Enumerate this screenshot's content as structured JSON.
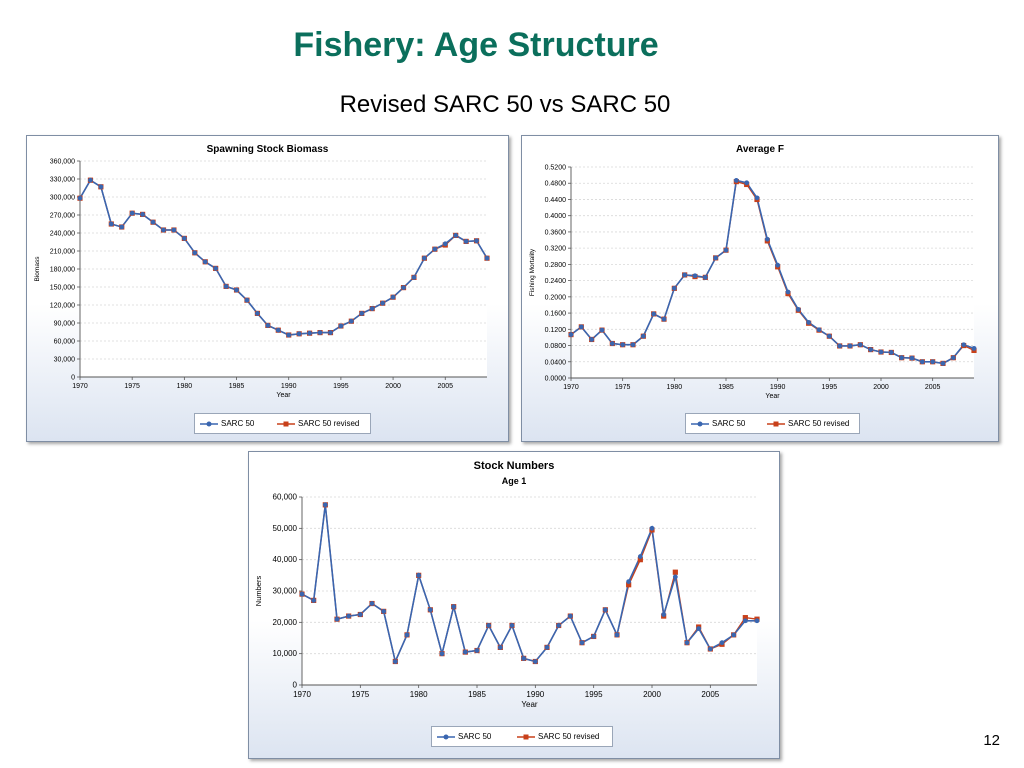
{
  "slide": {
    "title": "Fishery: Age Structure",
    "subtitle": "Revised SARC 50 vs SARC 50",
    "page_number": "12"
  },
  "colors": {
    "title": "#0b6f5c",
    "sarc50": "#3a66b0",
    "sarc50_revised": "#c8401a"
  },
  "chart_data": [
    {
      "id": "ssb",
      "type": "line",
      "title": "Spawning Stock Biomass",
      "subtitle": "",
      "xlabel": "Year",
      "ylabel": "Biomass",
      "xlim": [
        1970,
        2009
      ],
      "xticks": [
        1970,
        1975,
        1980,
        1985,
        1990,
        1995,
        2000,
        2005
      ],
      "ylim": [
        0,
        360000
      ],
      "yticks": [
        0,
        30000,
        60000,
        90000,
        120000,
        150000,
        180000,
        210000,
        240000,
        270000,
        300000,
        330000,
        360000
      ],
      "ytick_labels": [
        "0",
        "30,000",
        "60,000",
        "90,000",
        "120,000",
        "150,000",
        "180,000",
        "210,000",
        "240,000",
        "270,000",
        "300,000",
        "330,000",
        "360,000"
      ],
      "grid": true,
      "legend": "bottom",
      "x": [
        1970,
        1971,
        1972,
        1973,
        1974,
        1975,
        1976,
        1977,
        1978,
        1979,
        1980,
        1981,
        1982,
        1983,
        1984,
        1985,
        1986,
        1987,
        1988,
        1989,
        1990,
        1991,
        1992,
        1993,
        1994,
        1995,
        1996,
        1997,
        1998,
        1999,
        2000,
        2001,
        2002,
        2003,
        2004,
        2005,
        2006,
        2007,
        2008,
        2009
      ],
      "series": [
        {
          "name": "SARC 50",
          "marker": "circle",
          "color": "#3a66b0",
          "values": [
            298000,
            328000,
            317000,
            255000,
            250000,
            273000,
            271000,
            258000,
            245000,
            245000,
            231000,
            207000,
            192000,
            181000,
            151000,
            145000,
            128000,
            106000,
            86000,
            78000,
            70000,
            72000,
            73000,
            74000,
            74000,
            85000,
            93000,
            106000,
            114000,
            123000,
            133000,
            149000,
            166000,
            198000,
            213000,
            222000,
            236000,
            226000,
            227000,
            198000
          ]
        },
        {
          "name": "SARC 50 revised",
          "marker": "square",
          "color": "#c8401a",
          "values": [
            298000,
            328000,
            317000,
            255000,
            250000,
            273000,
            271000,
            258000,
            245000,
            245000,
            231000,
            207000,
            192000,
            181000,
            151000,
            145000,
            128000,
            106000,
            86000,
            78000,
            70000,
            72000,
            73000,
            74000,
            74000,
            85000,
            93000,
            106000,
            114000,
            123000,
            133000,
            149000,
            166000,
            198000,
            213000,
            220000,
            236000,
            226000,
            227000,
            198000
          ]
        }
      ]
    },
    {
      "id": "f",
      "type": "line",
      "title": "Average F",
      "subtitle": "",
      "xlabel": "Year",
      "ylabel": "Fishing Mortality",
      "xlim": [
        1970,
        2009
      ],
      "xticks": [
        1970,
        1975,
        1980,
        1985,
        1990,
        1995,
        2000,
        2005
      ],
      "ylim": [
        0,
        0.52
      ],
      "yticks": [
        0,
        0.04,
        0.08,
        0.12,
        0.16,
        0.2,
        0.24,
        0.28,
        0.32,
        0.36,
        0.4,
        0.44,
        0.48,
        0.52
      ],
      "ytick_labels": [
        "0.0000",
        "0.0400",
        "0.0800",
        "0.1200",
        "0.1600",
        "0.2000",
        "0.2400",
        "0.2800",
        "0.3200",
        "0.3600",
        "0.4000",
        "0.4400",
        "0.4800",
        "0.5200"
      ],
      "grid": true,
      "legend": "bottom",
      "x": [
        1970,
        1971,
        1972,
        1973,
        1974,
        1975,
        1976,
        1977,
        1978,
        1979,
        1980,
        1981,
        1982,
        1983,
        1984,
        1985,
        1986,
        1987,
        1988,
        1989,
        1990,
        1991,
        1992,
        1993,
        1994,
        1995,
        1996,
        1997,
        1998,
        1999,
        2000,
        2001,
        2002,
        2003,
        2004,
        2005,
        2006,
        2007,
        2008,
        2009
      ],
      "series": [
        {
          "name": "SARC 50",
          "marker": "circle",
          "color": "#3a66b0",
          "values": [
            0.107,
            0.126,
            0.095,
            0.118,
            0.085,
            0.082,
            0.082,
            0.103,
            0.158,
            0.145,
            0.221,
            0.254,
            0.252,
            0.248,
            0.296,
            0.315,
            0.487,
            0.481,
            0.444,
            0.342,
            0.278,
            0.212,
            0.169,
            0.137,
            0.119,
            0.103,
            0.079,
            0.079,
            0.082,
            0.07,
            0.064,
            0.063,
            0.05,
            0.049,
            0.04,
            0.04,
            0.036,
            0.05,
            0.082,
            0.073
          ]
        },
        {
          "name": "SARC 50 revised",
          "marker": "square",
          "color": "#c8401a",
          "values": [
            0.107,
            0.126,
            0.095,
            0.118,
            0.085,
            0.082,
            0.082,
            0.103,
            0.158,
            0.145,
            0.221,
            0.254,
            0.25,
            0.248,
            0.296,
            0.315,
            0.484,
            0.477,
            0.44,
            0.338,
            0.274,
            0.208,
            0.167,
            0.135,
            0.118,
            0.103,
            0.079,
            0.079,
            0.082,
            0.07,
            0.064,
            0.063,
            0.05,
            0.049,
            0.04,
            0.04,
            0.036,
            0.05,
            0.08,
            0.068
          ]
        }
      ]
    },
    {
      "id": "numbers",
      "type": "line",
      "title": "Stock Numbers",
      "subtitle": "Age 1",
      "xlabel": "Year",
      "ylabel": "Numbers",
      "xlim": [
        1970,
        2009
      ],
      "xticks": [
        1970,
        1975,
        1980,
        1985,
        1990,
        1995,
        2000,
        2005
      ],
      "ylim": [
        0,
        60000
      ],
      "yticks": [
        0,
        10000,
        20000,
        30000,
        40000,
        50000,
        60000
      ],
      "ytick_labels": [
        "0",
        "10,000",
        "20,000",
        "30,000",
        "40,000",
        "50,000",
        "60,000"
      ],
      "grid": true,
      "legend": "bottom",
      "x": [
        1970,
        1971,
        1972,
        1973,
        1974,
        1975,
        1976,
        1977,
        1978,
        1979,
        1980,
        1981,
        1982,
        1983,
        1984,
        1985,
        1986,
        1987,
        1988,
        1989,
        1990,
        1991,
        1992,
        1993,
        1994,
        1995,
        1996,
        1997,
        1998,
        1999,
        2000,
        2001,
        2002,
        2003,
        2004,
        2005,
        2006,
        2007,
        2008,
        2009
      ],
      "series": [
        {
          "name": "SARC 50",
          "marker": "circle",
          "color": "#3a66b0",
          "values": [
            29000,
            27000,
            57500,
            21000,
            22000,
            22500,
            26000,
            23500,
            7500,
            16000,
            35000,
            24000,
            10000,
            25000,
            10500,
            11000,
            19000,
            12000,
            19000,
            8500,
            7500,
            12000,
            19000,
            22000,
            13500,
            15500,
            24000,
            16000,
            33000,
            41000,
            50000,
            22500,
            34500,
            13500,
            18000,
            11500,
            13500,
            16000,
            20500,
            20500
          ]
        },
        {
          "name": "SARC 50 revised",
          "marker": "square",
          "color": "#c8401a",
          "values": [
            29000,
            27000,
            57500,
            21000,
            22000,
            22500,
            26000,
            23500,
            7500,
            16000,
            35000,
            24000,
            10000,
            25000,
            10500,
            11000,
            19000,
            12000,
            19000,
            8500,
            7500,
            12000,
            19000,
            22000,
            13500,
            15500,
            24000,
            16000,
            32000,
            40000,
            49500,
            22000,
            36000,
            13500,
            18500,
            11500,
            13000,
            16000,
            21500,
            21000
          ]
        }
      ]
    }
  ]
}
